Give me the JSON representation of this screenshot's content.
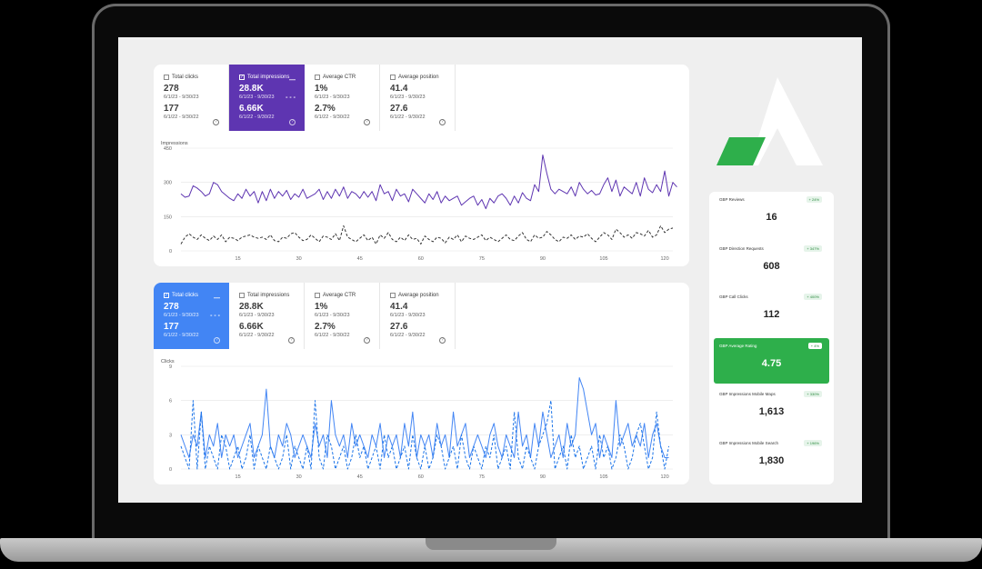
{
  "panel_top": {
    "metrics": [
      {
        "label": "Total clicks",
        "value_current": "278",
        "range_current": "6/1/23 - 9/30/23",
        "value_previous": "177",
        "range_previous": "6/1/22 - 9/30/22",
        "selected": false
      },
      {
        "label": "Total impressions",
        "value_current": "28.8K",
        "range_current": "6/1/23 - 9/30/23",
        "value_previous": "6.66K",
        "range_previous": "6/1/22 - 9/30/22",
        "selected": true
      },
      {
        "label": "Average CTR",
        "value_current": "1%",
        "range_current": "6/1/23 - 9/30/23",
        "value_previous": "2.7%",
        "range_previous": "6/1/22 - 9/30/22",
        "selected": false
      },
      {
        "label": "Average position",
        "value_current": "41.4",
        "range_current": "6/1/23 - 9/30/23",
        "value_previous": "27.6",
        "range_previous": "6/1/22 - 9/30/22",
        "selected": false
      }
    ],
    "chart_data": {
      "type": "line",
      "title": "Impressions",
      "ylim": [
        0,
        450
      ],
      "yticks": [
        0,
        150,
        300,
        450
      ],
      "xticks": [
        15,
        30,
        45,
        60,
        75,
        90,
        105,
        120
      ],
      "xlim": [
        1,
        122
      ],
      "series": [
        {
          "style": "solid",
          "color": "#5e35b1",
          "values": [
            250,
            235,
            240,
            285,
            275,
            260,
            240,
            250,
            300,
            290,
            260,
            245,
            230,
            220,
            250,
            230,
            270,
            240,
            260,
            210,
            260,
            220,
            270,
            230,
            260,
            240,
            265,
            225,
            250,
            235,
            270,
            230,
            240,
            250,
            270,
            225,
            260,
            230,
            270,
            240,
            280,
            230,
            260,
            250,
            230,
            260,
            235,
            260,
            220,
            290,
            250,
            260,
            220,
            270,
            240,
            250,
            215,
            270,
            250,
            230,
            210,
            250,
            225,
            260,
            210,
            240,
            220,
            230,
            240,
            200,
            215,
            230,
            240,
            200,
            225,
            185,
            230,
            210,
            240,
            250,
            230,
            200,
            240,
            210,
            255,
            230,
            220,
            290,
            260,
            420,
            340,
            270,
            250,
            270,
            260,
            250,
            280,
            240,
            300,
            270,
            250,
            265,
            245,
            250,
            290,
            320,
            260,
            310,
            240,
            280,
            265,
            250,
            300,
            240,
            320,
            270,
            255,
            290,
            260,
            350,
            240,
            300,
            280
          ],
          "shared": true
        },
        {
          "style": "dashed",
          "color": "#333333",
          "values": [
            30,
            60,
            75,
            60,
            50,
            70,
            55,
            45,
            65,
            50,
            70,
            40,
            60,
            55,
            45,
            60,
            65,
            70,
            60,
            55,
            60,
            50,
            70,
            45,
            40,
            60,
            55,
            75,
            80,
            60,
            45,
            50,
            70,
            55,
            40,
            65,
            60,
            50,
            75,
            45,
            110,
            60,
            50,
            40,
            55,
            70,
            45,
            60,
            30,
            70,
            55,
            80,
            50,
            40,
            60,
            45,
            70,
            50,
            55,
            30,
            65,
            50,
            40,
            60,
            55,
            35,
            60,
            50,
            70,
            40,
            65,
            55,
            50,
            60,
            70,
            45,
            60,
            50,
            40,
            55,
            70,
            50,
            45,
            65,
            80,
            50,
            40,
            70,
            55,
            60,
            85,
            70,
            50,
            40,
            60,
            55,
            70,
            50,
            65,
            60,
            75,
            55,
            40,
            60,
            80,
            70,
            50,
            95,
            80,
            60,
            70,
            55,
            80,
            75,
            65,
            90,
            60,
            70,
            110,
            80,
            95,
            100
          ]
        }
      ]
    }
  },
  "panel_bottom": {
    "metrics": [
      {
        "label": "Total clicks",
        "value_current": "278",
        "range_current": "6/1/23 - 9/30/23",
        "value_previous": "177",
        "range_previous": "6/1/22 - 9/30/22",
        "selected": true
      },
      {
        "label": "Total impressions",
        "value_current": "28.8K",
        "range_current": "6/1/23 - 9/30/23",
        "value_previous": "6.66K",
        "range_previous": "6/1/22 - 9/30/22",
        "selected": false
      },
      {
        "label": "Average CTR",
        "value_current": "1%",
        "range_current": "6/1/23 - 9/30/23",
        "value_previous": "2.7%",
        "range_previous": "6/1/22 - 9/30/22",
        "selected": false
      },
      {
        "label": "Average position",
        "value_current": "41.4",
        "range_current": "6/1/23 - 9/30/23",
        "value_previous": "27.6",
        "range_previous": "6/1/22 - 9/30/22",
        "selected": false
      }
    ],
    "chart_data": {
      "type": "line",
      "title": "Clicks",
      "ylim": [
        0,
        9
      ],
      "yticks": [
        0,
        3,
        6,
        9
      ],
      "xticks": [
        15,
        30,
        45,
        60,
        75,
        90,
        105,
        120
      ],
      "xlim": [
        1,
        122
      ],
      "series": [
        {
          "style": "solid",
          "color": "#4285f4",
          "values": [
            3,
            2,
            1,
            3,
            2,
            5,
            1,
            3,
            2,
            4,
            1,
            3,
            2,
            3,
            1,
            2,
            3,
            4,
            1,
            2,
            3,
            7,
            2,
            1,
            3,
            2,
            4,
            3,
            1,
            2,
            3,
            2,
            1,
            4,
            2,
            3,
            1,
            6,
            3,
            2,
            3,
            1,
            4,
            2,
            3,
            2,
            1,
            3,
            2,
            4,
            1,
            3,
            2,
            3,
            1,
            4,
            2,
            5,
            1,
            3,
            2,
            3,
            1,
            4,
            2,
            3,
            1,
            5,
            2,
            3,
            4,
            1,
            2,
            3,
            2,
            1,
            3,
            4,
            2,
            1,
            3,
            2,
            1,
            5,
            2,
            3,
            1,
            4,
            2,
            5,
            3,
            1,
            2,
            3,
            1,
            4,
            2,
            3,
            8,
            7,
            5,
            3,
            4,
            1,
            3,
            2,
            1,
            6,
            2,
            3,
            4,
            2,
            3,
            2,
            4,
            1,
            3,
            4,
            2,
            1,
            1
          ]
        },
        {
          "style": "dashed",
          "color": "#1a73e8",
          "values": [
            2,
            1,
            0,
            6,
            0,
            5,
            0,
            2,
            1,
            0,
            3,
            2,
            0,
            1,
            2,
            0,
            1,
            3,
            0,
            2,
            1,
            0,
            2,
            1,
            0,
            1,
            3,
            0,
            2,
            1,
            0,
            2,
            0,
            6,
            1,
            0,
            3,
            2,
            0,
            1,
            2,
            0,
            1,
            3,
            1,
            2,
            0,
            1,
            2,
            0,
            3,
            1,
            2,
            0,
            1,
            2,
            0,
            3,
            1,
            0,
            2,
            0,
            1,
            3,
            2,
            0,
            1,
            2,
            0,
            3,
            1,
            0,
            2,
            1,
            0,
            2,
            1,
            3,
            0,
            1,
            2,
            0,
            5,
            1,
            0,
            2,
            1,
            0,
            2,
            3,
            4,
            6,
            0,
            1,
            2,
            0,
            3,
            1,
            2,
            0,
            1,
            2,
            0,
            3,
            1,
            2,
            0,
            1,
            3,
            2,
            0,
            1,
            3,
            4,
            2,
            0,
            1,
            5,
            2,
            0,
            2
          ]
        }
      ]
    }
  },
  "gbp_cards": [
    {
      "label": "GBP Reviews",
      "badge": "+ 24%",
      "value": "16",
      "highlight": false
    },
    {
      "label": "GBP Direction Requests",
      "badge": "+ 347%",
      "value": "608",
      "highlight": false
    },
    {
      "label": "GBP Call Clicks",
      "badge": "+ 400%",
      "value": "112",
      "highlight": false
    },
    {
      "label": "GBP Average Rating",
      "badge": "+ 4%",
      "value": "4.75",
      "highlight": true
    },
    {
      "label": "GBP Impressions Mobile Maps",
      "badge": "+ 330%",
      "value": "1,613",
      "highlight": false
    },
    {
      "label": "GBP Impressions Mobile Search",
      "badge": "+ 196%",
      "value": "1,830",
      "highlight": false
    }
  ],
  "colors": {
    "purple": "#5e35b1",
    "blue": "#4285f4",
    "green": "#2eaf4b"
  },
  "icons": {
    "checkbox": "checkbox-icon",
    "help": "help-icon",
    "logo": "brand-logo"
  }
}
